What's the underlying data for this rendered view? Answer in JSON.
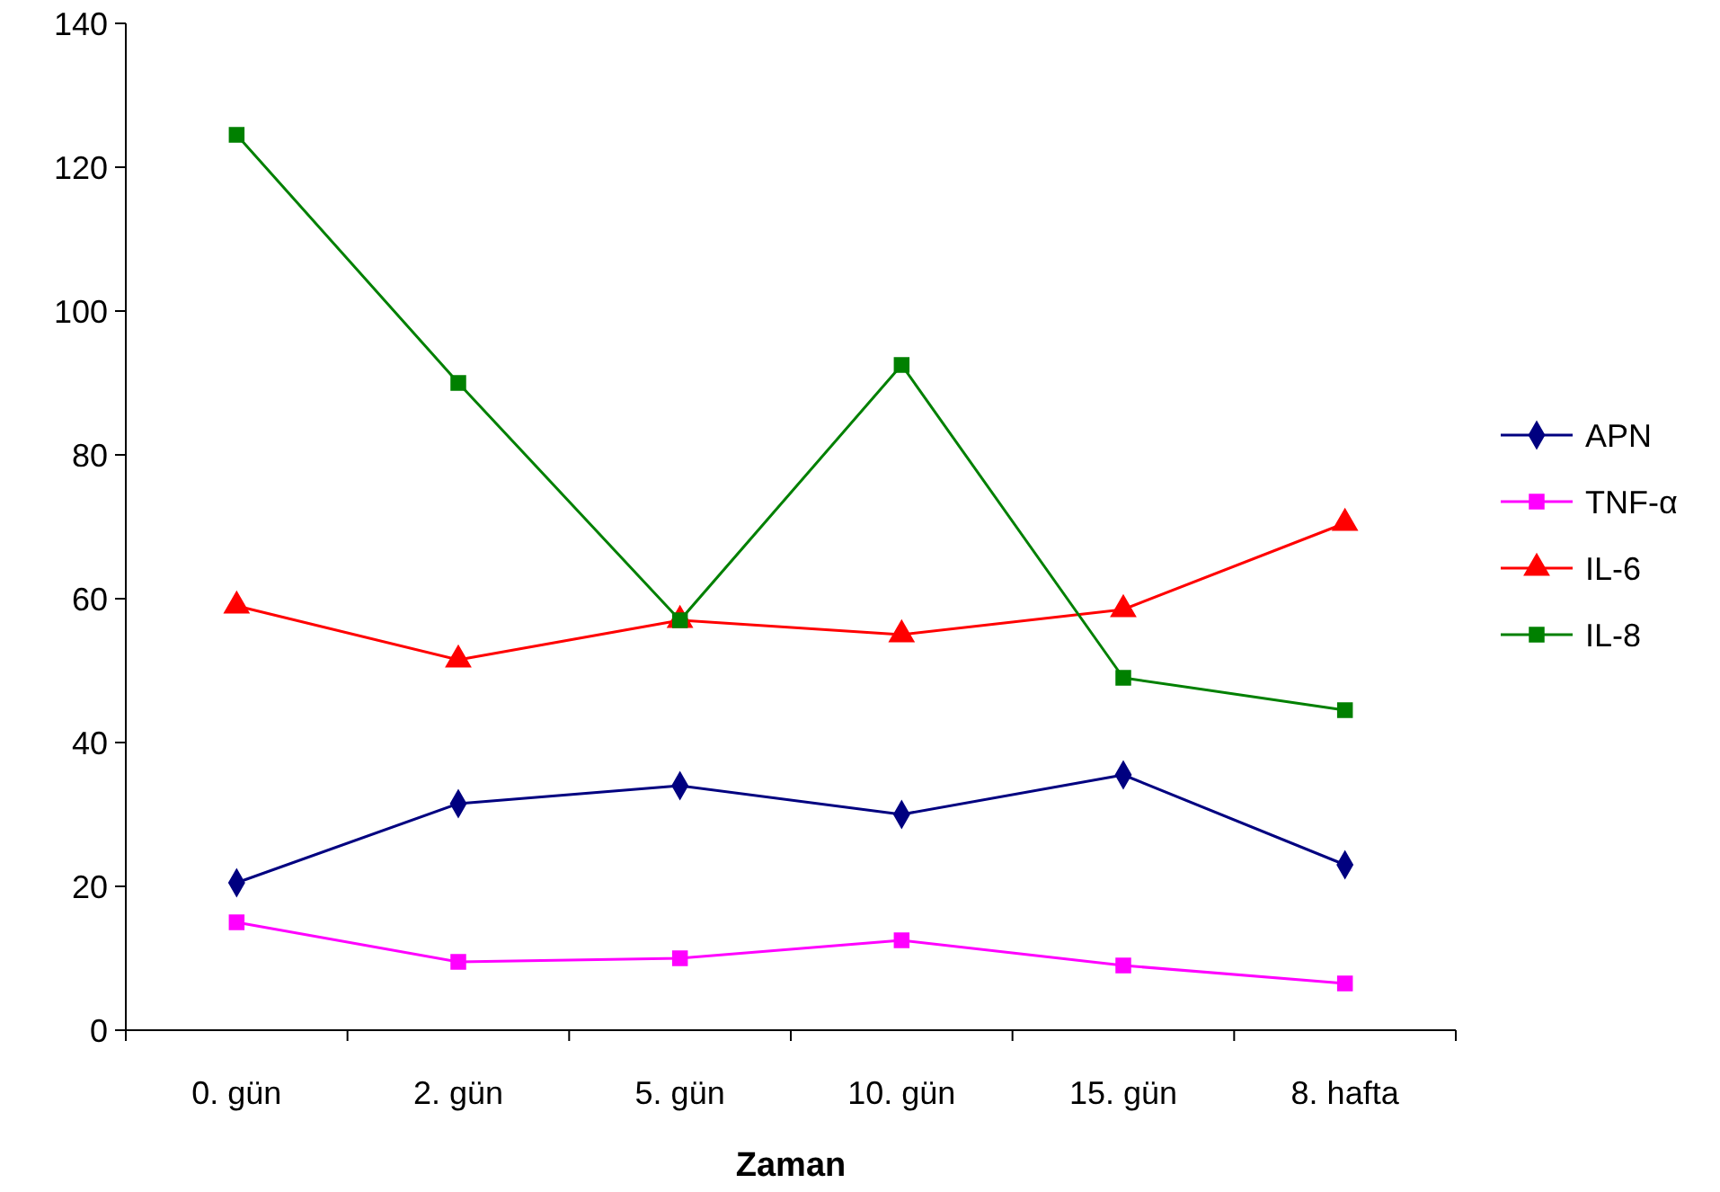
{
  "chart_data": {
    "type": "line",
    "xlabel": "Zaman",
    "categories": [
      "0. gün",
      "2. gün",
      "5. gün",
      "10. gün",
      "15. gün",
      "8. hafta"
    ],
    "series": [
      {
        "name": "APN",
        "color": "#000080",
        "marker": "diamond",
        "values": [
          20.5,
          31.5,
          34,
          30,
          35.5,
          23
        ]
      },
      {
        "name": "TNF-α",
        "color": "#ff00ff",
        "marker": "square",
        "values": [
          15,
          9.5,
          10,
          12.5,
          9,
          6.5
        ]
      },
      {
        "name": "IL-6",
        "color": "#ff0000",
        "marker": "triangle",
        "values": [
          59,
          51.5,
          57,
          55,
          58.5,
          70.5
        ]
      },
      {
        "name": "IL-8",
        "color": "#008000",
        "marker": "square",
        "values": [
          124.5,
          90,
          57,
          92.5,
          49,
          44.5
        ]
      }
    ],
    "ylim": [
      0,
      140
    ],
    "yticks": [
      0,
      20,
      40,
      60,
      80,
      100,
      120,
      140
    ],
    "grid": false,
    "legend": "right",
    "line_style": "solid"
  }
}
